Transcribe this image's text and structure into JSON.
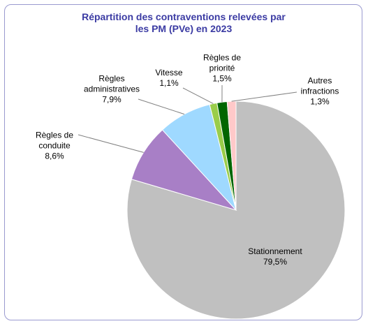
{
  "chart_data": {
    "type": "pie",
    "title": "Répartition des contraventions relevées par les PM (PVe) en 2023",
    "categories": [
      "Stationnement",
      "Règles de conduite",
      "Règles administratives",
      "Vitesse",
      "Règles de priorité",
      "Autres infractions"
    ],
    "values": [
      79.5,
      8.6,
      7.9,
      1.1,
      1.5,
      1.3
    ],
    "value_labels": [
      "79,5%",
      "8,6%",
      "7,9%",
      "1,1%",
      "1,5%",
      "1,3%"
    ],
    "colors": [
      "#c0c0c0",
      "#a87fc6",
      "#9fd9ff",
      "#9acd4a",
      "#006600",
      "#ffc9c9"
    ]
  }
}
